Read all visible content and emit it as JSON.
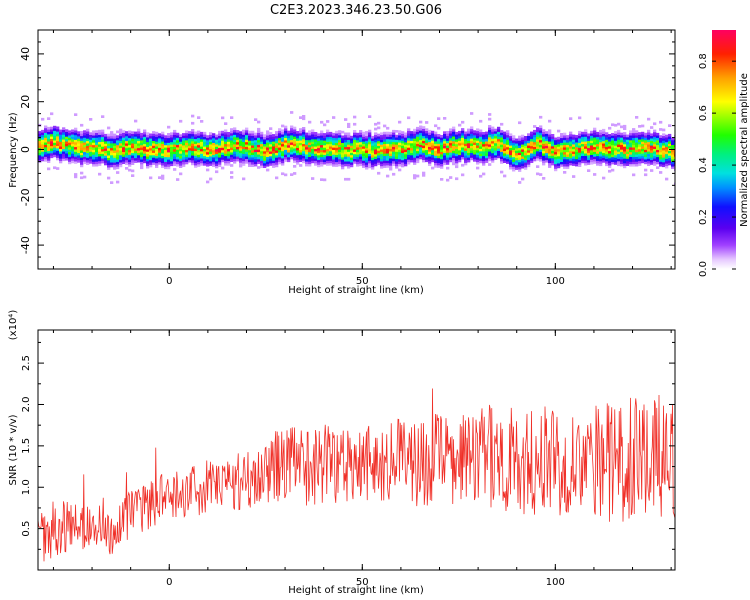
{
  "figure": {
    "title": "C2E3.2023.346.23.50.G06"
  },
  "colors": {
    "snr_line": "#f03028",
    "axes": "#000000",
    "background": "#ffffff"
  },
  "chart_data": [
    {
      "type": "heatmap",
      "xlabel": "Height of straight line (km)",
      "ylabel": "Frequency (Hz)",
      "xlim": [
        -34,
        131
      ],
      "ylim": [
        -50,
        50
      ],
      "x_ticks": [
        {
          "value": 0,
          "label": "0"
        },
        {
          "value": 50,
          "label": "50"
        },
        {
          "value": 100,
          "label": "100"
        }
      ],
      "y_ticks": [
        {
          "value": -40,
          "label": "-40"
        },
        {
          "value": -20,
          "label": "-20"
        },
        {
          "value": 0,
          "label": "0"
        },
        {
          "value": 20,
          "label": "20"
        },
        {
          "value": 40,
          "label": "40"
        }
      ],
      "colormap": "rainbow (purple to red), white at zero",
      "colorbar": {
        "label": "Normalized spectral amplitude",
        "range": [
          0.0,
          0.92
        ],
        "ticks": [
          {
            "value": 0.0,
            "label": "0.0"
          },
          {
            "value": 0.2,
            "label": "0.2"
          },
          {
            "value": 0.4,
            "label": "0.4"
          },
          {
            "value": 0.6,
            "label": "0.6"
          },
          {
            "value": 0.8,
            "label": "0.8"
          }
        ]
      },
      "band_center_hz": [
        [
          -34,
          2
        ],
        [
          -30,
          3
        ],
        [
          -25,
          1
        ],
        [
          -20,
          1
        ],
        [
          -15,
          -1
        ],
        [
          -10,
          1
        ],
        [
          -5,
          0
        ],
        [
          0,
          0
        ],
        [
          5,
          1
        ],
        [
          10,
          0
        ],
        [
          15,
          1
        ],
        [
          20,
          1
        ],
        [
          25,
          -1
        ],
        [
          30,
          2
        ],
        [
          35,
          1
        ],
        [
          40,
          1
        ],
        [
          45,
          0
        ],
        [
          50,
          0
        ],
        [
          55,
          0
        ],
        [
          60,
          0
        ],
        [
          65,
          2
        ],
        [
          70,
          0
        ],
        [
          75,
          2
        ],
        [
          80,
          1
        ],
        [
          85,
          3
        ],
        [
          90,
          -2
        ],
        [
          95,
          3
        ],
        [
          100,
          -1
        ],
        [
          105,
          0
        ],
        [
          110,
          1
        ],
        [
          115,
          0
        ],
        [
          120,
          0
        ],
        [
          125,
          1
        ],
        [
          130,
          -1
        ]
      ],
      "band_half_width_hz": 3
    },
    {
      "type": "line",
      "xlabel": "Height of straight line (km)",
      "ylabel": "SNR (10 * v/v)",
      "y_multiplier": "(x10⁴)",
      "xlim": [
        -34,
        131
      ],
      "ylim": [
        0,
        29000
      ],
      "x_ticks": [
        {
          "value": 0,
          "label": "0"
        },
        {
          "value": 50,
          "label": "50"
        },
        {
          "value": 100,
          "label": "100"
        }
      ],
      "y_ticks": [
        {
          "value": 5000,
          "label": "0.5"
        },
        {
          "value": 10000,
          "label": "1.0"
        },
        {
          "value": 15000,
          "label": "1.5"
        },
        {
          "value": 20000,
          "label": "2.0"
        },
        {
          "value": 25000,
          "label": "2.5"
        }
      ],
      "series": [
        {
          "x": [
            -34,
            -30,
            -25,
            -20,
            -15,
            -10,
            -5,
            0,
            5,
            10,
            15,
            20,
            25,
            30,
            35,
            40,
            45,
            50,
            55,
            60,
            65,
            70,
            75,
            80,
            85,
            90,
            95,
            100,
            105,
            110,
            115,
            120,
            125,
            130
          ],
          "values": [
            4000,
            5000,
            5500,
            5000,
            4500,
            6500,
            8000,
            9000,
            9500,
            10000,
            10500,
            11000,
            12000,
            13000,
            12500,
            13000,
            13000,
            13500,
            13000,
            13500,
            13000,
            13500,
            13000,
            13500,
            14000,
            13000,
            13000,
            13500,
            13500,
            14000,
            13000,
            13500,
            13000,
            13000
          ],
          "amplitude": [
            3500,
            3500,
            3000,
            3000,
            3000,
            3000,
            3000,
            3000,
            3000,
            3500,
            3500,
            4000,
            4500,
            4500,
            5000,
            5000,
            5000,
            5000,
            5000,
            5000,
            5500,
            5500,
            5500,
            6000,
            6500,
            6500,
            6500,
            7000,
            7000,
            7500,
            7500,
            7500,
            7500,
            7500
          ]
        }
      ]
    }
  ]
}
